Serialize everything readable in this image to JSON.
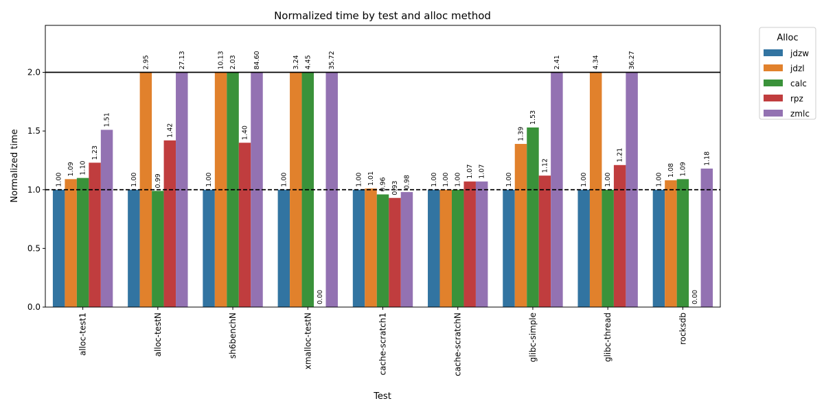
{
  "chart_data": {
    "type": "bar",
    "title": "Normalized time by test and alloc method",
    "x_label": "Test",
    "y_label": "Normalized time",
    "legend_title": "Alloc",
    "legend": "outside-upper-right",
    "categories": [
      "alloc-test1",
      "alloc-testN",
      "sh6benchN",
      "xmalloc-testN",
      "cache-scratch1",
      "cache-scratchN",
      "glibc-simple",
      "glibc-thread",
      "rocksdb"
    ],
    "series": [
      {
        "name": "jdzw",
        "color": "#3274a1",
        "values": [
          1.0,
          1.0,
          1.0,
          1.0,
          1.0,
          1.0,
          1.0,
          1.0,
          1.0
        ],
        "value_labels": [
          "1.00",
          "1.00",
          "1.00",
          "1.00",
          "1.00",
          "1.00",
          "1.00",
          "1.00",
          "1.00"
        ]
      },
      {
        "name": "jdzl",
        "color": "#e1812c",
        "values": [
          1.09,
          2.95,
          10.13,
          3.24,
          1.01,
          1.0,
          1.39,
          4.34,
          1.08
        ],
        "value_labels": [
          "1.09",
          "2.95",
          "10.13",
          "3.24",
          "1.01",
          "1.00",
          "1.39",
          "4.34",
          "1.08"
        ]
      },
      {
        "name": "calc",
        "color": "#3a923a",
        "values": [
          1.1,
          0.99,
          2.03,
          4.45,
          0.96,
          1.0,
          1.53,
          1.0,
          1.09
        ],
        "value_labels": [
          "1.10",
          "0.99",
          "2.03",
          "4.45",
          "0.96",
          "1.00",
          "1.53",
          "1.00",
          "1.09"
        ]
      },
      {
        "name": "rpz",
        "color": "#c03d3e",
        "values": [
          1.23,
          1.42,
          1.4,
          0,
          0.93,
          1.07,
          1.12,
          1.21,
          0
        ],
        "value_labels": [
          "1.23",
          "1.42",
          "1.40",
          "0.00",
          "0.93",
          "1.07",
          "1.12",
          "1.21",
          "0.00"
        ]
      },
      {
        "name": "zmlc",
        "color": "#9372b2",
        "values": [
          1.51,
          27.13,
          84.6,
          35.72,
          0.98,
          1.07,
          2.41,
          36.27,
          1.18
        ],
        "value_labels": [
          "1.51",
          "27.13",
          "84.60",
          "35.72",
          "0.98",
          "1.07",
          "2.41",
          "36.27",
          "1.18"
        ]
      }
    ],
    "ylim": [
      0,
      2.4
    ],
    "yticks": [
      {
        "value": 0,
        "label": "0.0"
      },
      {
        "value": 0.5,
        "label": "0.5"
      },
      {
        "value": 1,
        "label": "1.0"
      },
      {
        "value": 1.5,
        "label": "1.5"
      },
      {
        "value": 2,
        "label": "2.0"
      }
    ],
    "hlines": [
      {
        "value": 2,
        "style": "solid",
        "clip": true
      },
      {
        "value": 1,
        "style": "dashed"
      }
    ]
  }
}
